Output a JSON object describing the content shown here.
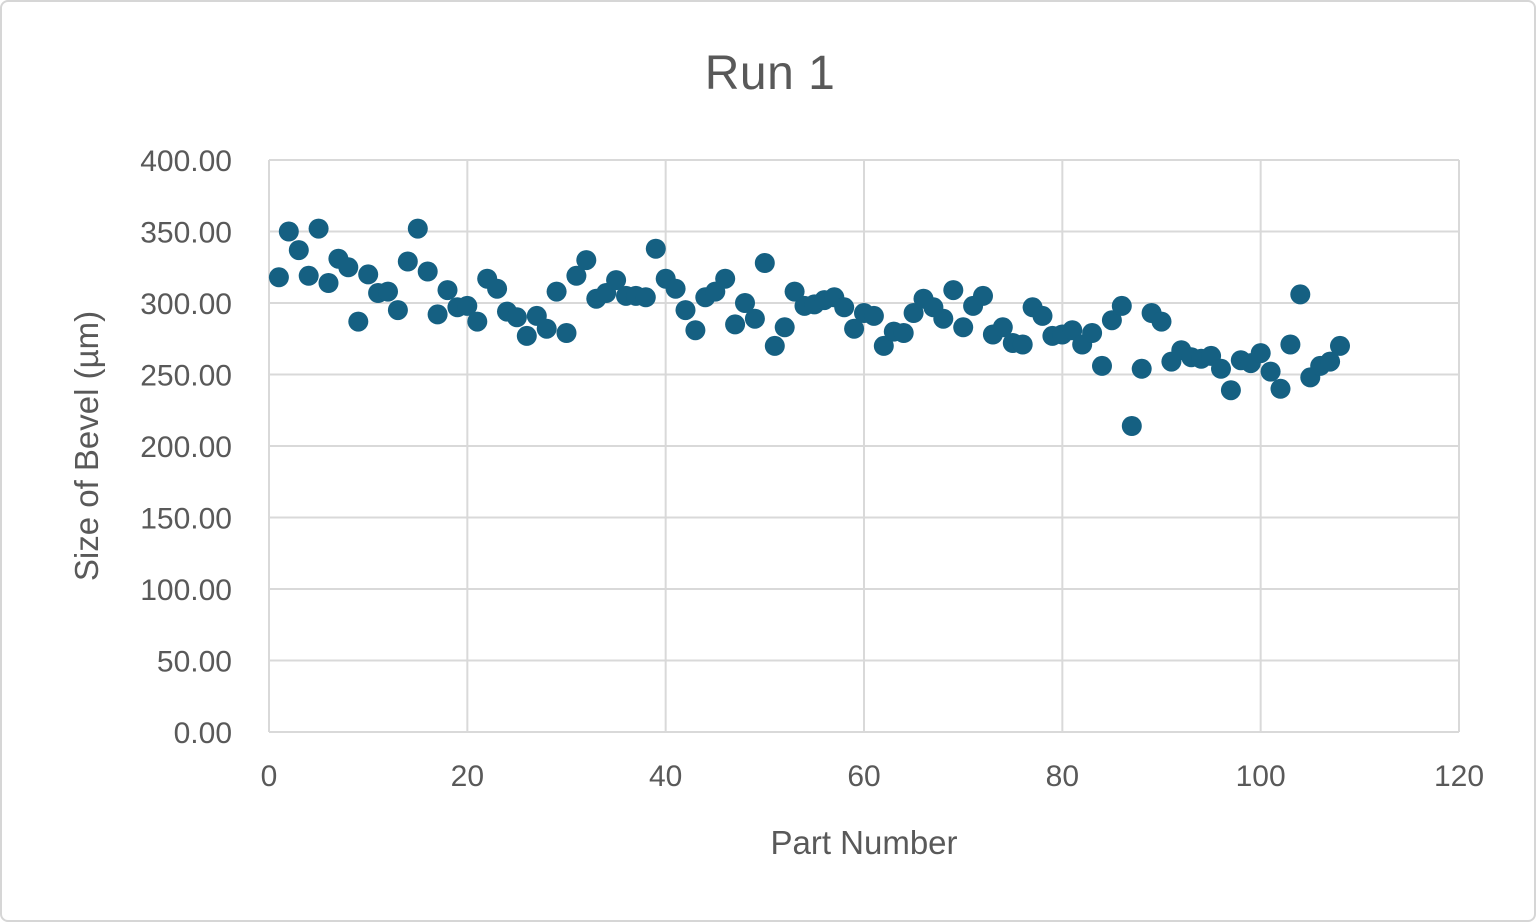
{
  "chart_data": {
    "type": "scatter",
    "title": "Run 1",
    "xlabel": "Part Number",
    "ylabel": "Size of Bevel (µm)",
    "xlim": [
      0,
      120
    ],
    "ylim": [
      0,
      400
    ],
    "grid": true,
    "legend": "none",
    "x_ticks": [
      0,
      20,
      40,
      60,
      80,
      100,
      120
    ],
    "y_ticks": [
      {
        "label": "0.00",
        "value": 0
      },
      {
        "label": "50.00",
        "value": 50
      },
      {
        "label": "100.00",
        "value": 100
      },
      {
        "label": "150.00",
        "value": 150
      },
      {
        "label": "200.00",
        "value": 200
      },
      {
        "label": "250.00",
        "value": 250
      },
      {
        "label": "300.00",
        "value": 300
      },
      {
        "label": "350.00",
        "value": 350
      },
      {
        "label": "400.00",
        "value": 400
      }
    ],
    "x": [
      1,
      2,
      3,
      4,
      5,
      6,
      7,
      8,
      9,
      10,
      11,
      12,
      13,
      14,
      15,
      16,
      17,
      18,
      19,
      20,
      21,
      22,
      23,
      24,
      25,
      26,
      27,
      28,
      29,
      30,
      31,
      32,
      33,
      34,
      35,
      36,
      37,
      38,
      39,
      40,
      41,
      42,
      43,
      44,
      45,
      46,
      47,
      48,
      49,
      50,
      51,
      52,
      53,
      54,
      55,
      56,
      57,
      58,
      59,
      60,
      61,
      62,
      63,
      64,
      65,
      66,
      67,
      68,
      69,
      70,
      71,
      72,
      73,
      74,
      75,
      76,
      77,
      78,
      79,
      80,
      81,
      82,
      83,
      84,
      85,
      86,
      87,
      88,
      89,
      90,
      91,
      92,
      93,
      94,
      95,
      96,
      97,
      98,
      99,
      100,
      101,
      102,
      103,
      104,
      105,
      106,
      107,
      108
    ],
    "y": [
      318,
      350,
      337,
      319,
      352,
      314,
      331,
      325,
      287,
      320,
      307,
      308,
      295,
      329,
      352,
      322,
      292,
      309,
      297,
      298,
      287,
      317,
      310,
      294,
      290,
      277,
      291,
      282,
      308,
      279,
      319,
      330,
      303,
      307,
      316,
      305,
      305,
      304,
      338,
      317,
      310,
      295,
      281,
      304,
      308,
      317,
      285,
      300,
      289,
      328,
      270,
      283,
      308,
      298,
      299,
      302,
      304,
      297,
      282,
      293,
      291,
      270,
      280,
      279,
      293,
      303,
      297,
      289,
      309,
      283,
      298,
      305,
      278,
      283,
      272,
      271,
      297,
      291,
      277,
      278,
      281,
      271,
      279,
      256,
      288,
      298,
      214,
      254,
      293,
      287,
      259,
      267,
      262,
      261,
      263,
      254,
      239,
      260,
      258,
      265,
      252,
      240,
      271,
      306,
      248,
      256,
      259,
      270
    ]
  },
  "colors": {
    "marker": "#156082",
    "gridline": "#d9d9d9",
    "text": "#595959",
    "background": "#ffffff",
    "frame_border": "#d6d6d6"
  }
}
